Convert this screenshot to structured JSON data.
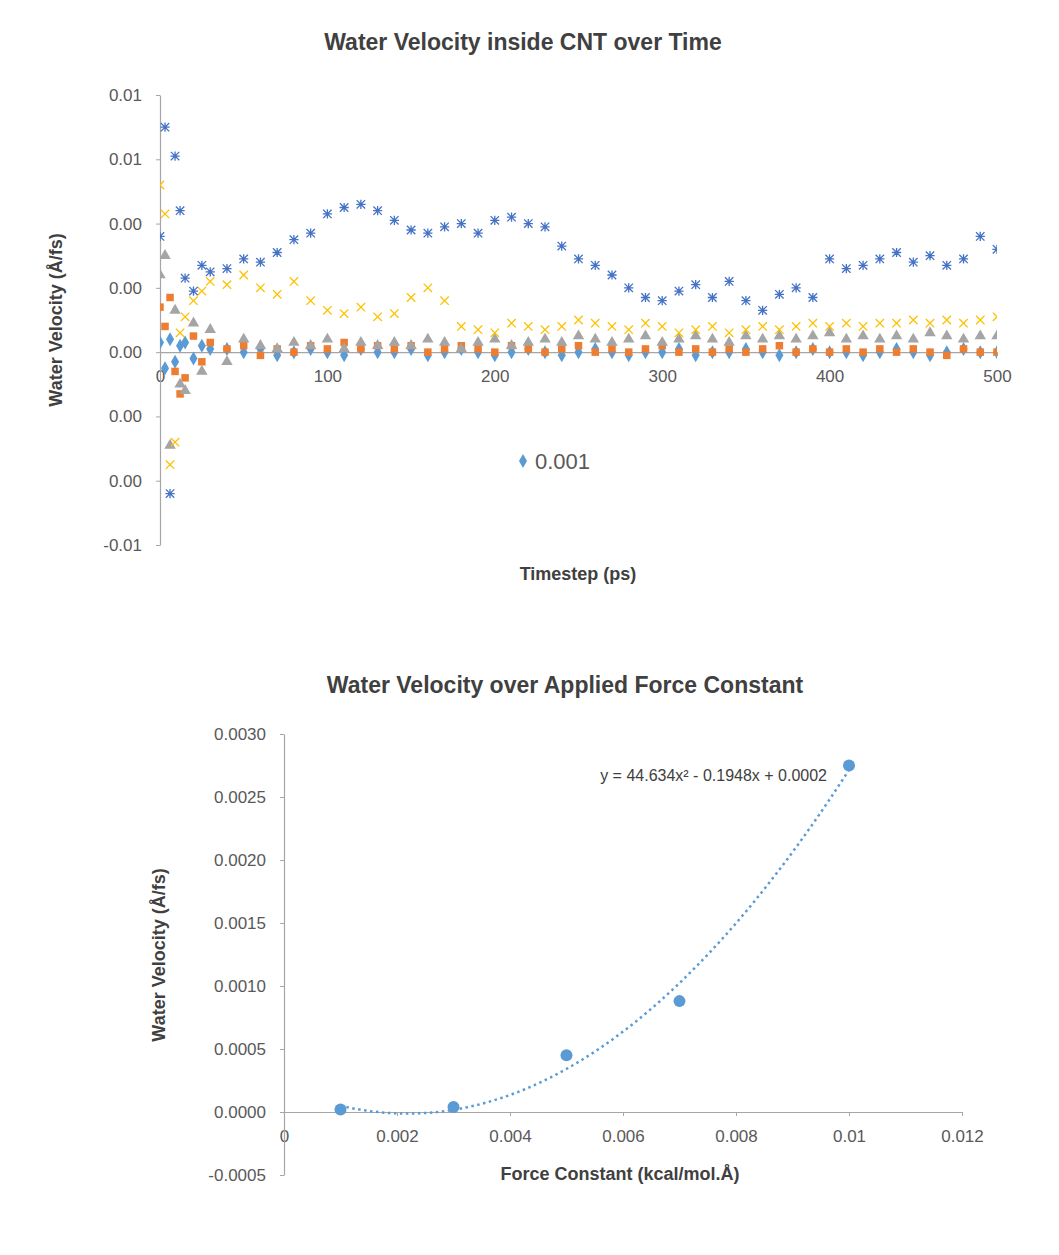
{
  "chart_data": [
    {
      "type": "scatter",
      "title": "Water Velocity inside CNT over Time",
      "x_label": "Timestep (ps)",
      "y_label": "Water Velocity (Å/fs)",
      "x": [
        0,
        3,
        6,
        9,
        12,
        15,
        20,
        25,
        30,
        40,
        50,
        60,
        70,
        80,
        90,
        100,
        110,
        120,
        130,
        140,
        150,
        160,
        170,
        180,
        190,
        200,
        210,
        220,
        230,
        240,
        250,
        260,
        270,
        280,
        290,
        300,
        310,
        320,
        330,
        340,
        350,
        360,
        370,
        380,
        390,
        400,
        410,
        420,
        430,
        440,
        450,
        460,
        470,
        480,
        490,
        500
      ],
      "series": [
        {
          "name": "0.001",
          "color": "#5b9bd5",
          "marker": "diamond",
          "values": [
            0.0003,
            -0.0005,
            0.0004,
            -0.0003,
            0.0002,
            0.0003,
            -0.0002,
            0.0002,
            0.0001,
            0.0001,
            0,
            0.0001,
            -0.0001,
            0,
            0.0001,
            0,
            -0.0001,
            0.0001,
            0,
            0,
            0.0001,
            -0.0001,
            0,
            0.0001,
            0,
            -0.0001,
            0,
            0.0001,
            0,
            -0.0001,
            0,
            0.0001,
            0,
            -0.0001,
            0,
            0,
            0.0001,
            -0.0001,
            0,
            0,
            0.0001,
            0,
            -0.0001,
            0,
            0.0001,
            0,
            0,
            -0.0001,
            0,
            0.0001,
            0,
            -0.0001,
            0,
            0.0001,
            0,
            0
          ]
        },
        {
          "color": "#ed7d31",
          "marker": "square",
          "values": [
            0.0014,
            0.0008,
            0.0017,
            -0.0006,
            -0.0013,
            -0.0008,
            0.0005,
            -0.0003,
            0.0003,
            0.0001,
            0.0002,
            -0.0001,
            0.0001,
            0,
            0.0002,
            0.0001,
            0.0003,
            0.0001,
            0.0002,
            0.0001,
            0.0002,
            0,
            0.0001,
            0.0002,
            0.0001,
            0,
            0.0002,
            0.0001,
            0,
            0.0001,
            0.0002,
            0,
            0.0001,
            0,
            0.0001,
            0.0002,
            0,
            0.0001,
            0,
            0.0001,
            0,
            0.0001,
            0.0002,
            0,
            0.0001,
            0,
            0.0001,
            0,
            0.0001,
            0,
            0.0001,
            0,
            -0.0001,
            0.0001,
            0,
            0
          ]
        },
        {
          "color": "#a5a5a5",
          "marker": "triangle",
          "values": [
            0.0024,
            0.003,
            -0.0029,
            0.0013,
            -0.001,
            -0.0012,
            0.0009,
            -0.0006,
            0.0007,
            -0.0003,
            0.0004,
            0.0002,
            0.0001,
            0.0003,
            0.0002,
            0.0004,
            0.0001,
            0.0003,
            0.0002,
            0.0003,
            0.0002,
            0.0004,
            0.0003,
            0.0001,
            0.0003,
            0.0004,
            0.0002,
            0.0003,
            0.0004,
            0.0003,
            0.0005,
            0.0004,
            0.0003,
            0.0004,
            0.0005,
            0.0003,
            0.0004,
            0.0005,
            0.0004,
            0.0003,
            0.0005,
            0.0004,
            0.0005,
            0.0004,
            0.0005,
            0.0006,
            0.0004,
            0.0005,
            0.0004,
            0.0005,
            0.0004,
            0.0006,
            0.0005,
            0.0004,
            0.0005,
            0.0005
          ]
        },
        {
          "color": "#ffc000",
          "marker": "x",
          "values": [
            0.0052,
            0.0043,
            -0.0035,
            -0.0028,
            0.0006,
            0.0011,
            0.0016,
            0.0019,
            0.0022,
            0.0021,
            0.0024,
            0.002,
            0.0018,
            0.0022,
            0.0016,
            0.0013,
            0.0012,
            0.0014,
            0.0011,
            0.0012,
            0.0017,
            0.002,
            0.0016,
            0.0008,
            0.0007,
            0.0006,
            0.0009,
            0.0008,
            0.0007,
            0.0008,
            0.001,
            0.0009,
            0.0008,
            0.0007,
            0.0009,
            0.0008,
            0.0006,
            0.0007,
            0.0008,
            0.0006,
            0.0007,
            0.0008,
            0.0007,
            0.0008,
            0.0009,
            0.0008,
            0.0009,
            0.0008,
            0.0009,
            0.0009,
            0.001,
            0.0009,
            0.001,
            0.0009,
            0.001,
            0.0011
          ]
        },
        {
          "color": "#4472c4",
          "marker": "star",
          "values": [
            0.0036,
            0.007,
            -0.0044,
            0.0061,
            0.0044,
            0.0023,
            0.0019,
            0.0027,
            0.0025,
            0.0026,
            0.0029,
            0.0028,
            0.0031,
            0.0035,
            0.0037,
            0.0043,
            0.0045,
            0.0046,
            0.0044,
            0.0041,
            0.0038,
            0.0037,
            0.0039,
            0.004,
            0.0037,
            0.0041,
            0.0042,
            0.004,
            0.0039,
            0.0033,
            0.0029,
            0.0027,
            0.0024,
            0.002,
            0.0017,
            0.0016,
            0.0019,
            0.0021,
            0.0017,
            0.0022,
            0.0016,
            0.0013,
            0.0018,
            0.002,
            0.0017,
            0.0029,
            0.0026,
            0.0027,
            0.0029,
            0.0031,
            0.0028,
            0.003,
            0.0027,
            0.0029,
            0.0036,
            0.0032
          ]
        }
      ],
      "xlim": [
        0,
        500
      ],
      "xticks": [
        0,
        100,
        200,
        300,
        400,
        500
      ],
      "ylim": [
        -0.006,
        0.008
      ],
      "yticks": [
        {
          "value": -0.006,
          "label": "-0.01"
        },
        {
          "value": -0.004,
          "label": "0.00"
        },
        {
          "value": -0.002,
          "label": "0.00"
        },
        {
          "value": 0,
          "label": "0.00"
        },
        {
          "value": 0.002,
          "label": "0.00"
        },
        {
          "value": 0.004,
          "label": "0.00"
        },
        {
          "value": 0.006,
          "label": "0.01"
        },
        {
          "value": 0.008,
          "label": "0.01"
        }
      ],
      "legend": "bottom"
    },
    {
      "type": "scatter",
      "title": "Water Velocity over Applied Force Constant",
      "x_label": "Force Constant (kcal/mol.Å)",
      "y_label": "Water Velocity (Å/fs)",
      "x": [
        0.001,
        0.003,
        0.005,
        0.007,
        0.01
      ],
      "series": [
        {
          "color": "#5b9bd5",
          "marker": "circle",
          "values": [
            2e-05,
            4e-05,
            0.00045,
            0.00088,
            0.00275
          ]
        }
      ],
      "trendline": {
        "type": "polynomial",
        "coefficients": [
          44.634,
          -0.1948,
          0.0002
        ],
        "x": [
          0.001,
          0.01
        ],
        "label": "y = 44.634x² - 0.1948x + 0.0002",
        "line_style": "dotted",
        "color": "#5b9bd5"
      },
      "xlim": [
        0,
        0.012
      ],
      "xticks": [
        0,
        0.002,
        0.004,
        0.006,
        0.008,
        0.01,
        0.012
      ],
      "ylim": [
        -0.0005,
        0.003
      ],
      "yticks": [
        -0.0005,
        {
          "value": 0,
          "label": "0.0000"
        },
        0.0005,
        {
          "value": 0.001,
          "label": "0.0010"
        },
        {
          "value": 0.0015,
          "label": "0.0015"
        },
        {
          "value": 0.002,
          "label": "0.0020"
        },
        {
          "value": 0.0025,
          "label": "0.0025"
        },
        {
          "value": 0.003,
          "label": "0.0030"
        }
      ]
    }
  ]
}
